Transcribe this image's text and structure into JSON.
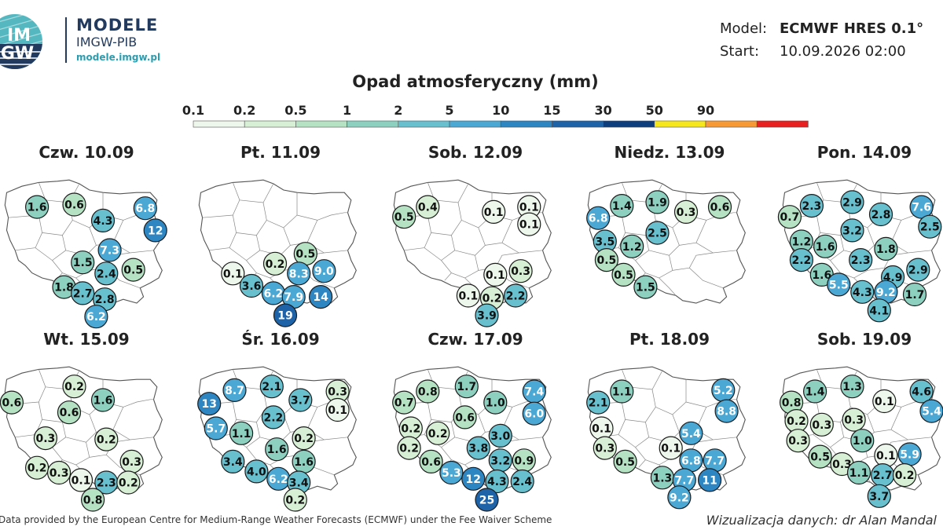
{
  "header": {
    "logo_text": "IMGW",
    "title": "MODELE",
    "subtitle": "IMGW-PIB",
    "url": "modele.imgw.pl"
  },
  "meta": {
    "model_label": "Model:",
    "model_value": "ECMWF HRES 0.1°",
    "start_label": "Start:",
    "start_value": "10.09.2026 02:00"
  },
  "scale": {
    "title": "Opad atmosferyczny (mm)",
    "ticks": [
      "0.1",
      "0.2",
      "0.5",
      "1",
      "2",
      "5",
      "10",
      "15",
      "30",
      "50",
      "90"
    ],
    "thresholds": [
      0.1,
      0.2,
      0.5,
      1,
      2,
      5,
      10,
      15,
      30,
      50,
      90
    ],
    "colors": [
      "#eef7ec",
      "#d7efd4",
      "#b6e2c4",
      "#8dd0c0",
      "#68bfce",
      "#4ba8d4",
      "#2d85c2",
      "#1e63a7",
      "#0e3d7d",
      "#f5e71b",
      "#f79a35",
      "#e8201f"
    ]
  },
  "panels": [
    {
      "title": "Czw. 10.09",
      "values": [
        [
          "1.6",
          0.21,
          0.24
        ],
        [
          "0.6",
          0.43,
          0.22
        ],
        [
          "4.3",
          0.6,
          0.35
        ],
        [
          "6.8",
          0.85,
          0.25
        ],
        [
          "12",
          0.91,
          0.43
        ],
        [
          "7.3",
          0.64,
          0.59
        ],
        [
          "1.5",
          0.48,
          0.69
        ],
        [
          "2.4",
          0.62,
          0.78
        ],
        [
          "0.5",
          0.78,
          0.75
        ],
        [
          "1.8",
          0.37,
          0.89
        ],
        [
          "2.7",
          0.48,
          0.94
        ],
        [
          "2.8",
          0.61,
          0.99
        ],
        [
          "6.2",
          0.56,
          1.13
        ]
      ]
    },
    {
      "title": "Pt. 11.09",
      "values": [
        [
          "0.5",
          0.65,
          0.62
        ],
        [
          "0.2",
          0.47,
          0.7
        ],
        [
          "0.1",
          0.22,
          0.78
        ],
        [
          "8.3",
          0.61,
          0.78
        ],
        [
          "9.0",
          0.76,
          0.76
        ],
        [
          "3.6",
          0.33,
          0.88
        ],
        [
          "6.2",
          0.46,
          0.94
        ],
        [
          "7.9",
          0.58,
          0.97
        ],
        [
          "14",
          0.74,
          0.97
        ],
        [
          "19",
          0.53,
          1.12
        ]
      ]
    },
    {
      "title": "Sob. 12.09",
      "values": [
        [
          "0.4",
          0.22,
          0.24
        ],
        [
          "0.5",
          0.08,
          0.32
        ],
        [
          "0.1",
          0.61,
          0.28
        ],
        [
          "0.1",
          0.82,
          0.24
        ],
        [
          "0.1",
          0.82,
          0.38
        ],
        [
          "0.1",
          0.62,
          0.79
        ],
        [
          "0.3",
          0.77,
          0.76
        ],
        [
          "0.1",
          0.46,
          0.96
        ],
        [
          "0.2",
          0.6,
          0.98
        ],
        [
          "2.2",
          0.74,
          0.96
        ],
        [
          "3.9",
          0.57,
          1.12
        ]
      ]
    },
    {
      "title": "Niedz. 13.09",
      "values": [
        [
          "1.4",
          0.22,
          0.23
        ],
        [
          "1.9",
          0.43,
          0.2
        ],
        [
          "0.3",
          0.6,
          0.28
        ],
        [
          "0.6",
          0.8,
          0.24
        ],
        [
          "6.8",
          0.08,
          0.33
        ],
        [
          "2.5",
          0.43,
          0.45
        ],
        [
          "3.5",
          0.12,
          0.52
        ],
        [
          "1.2",
          0.28,
          0.56
        ],
        [
          "0.5",
          0.13,
          0.67
        ],
        [
          "0.5",
          0.23,
          0.79
        ],
        [
          "1.5",
          0.36,
          0.89
        ]
      ]
    },
    {
      "title": "Pon. 14.09",
      "values": [
        [
          "2.3",
          0.19,
          0.23
        ],
        [
          "2.9",
          0.43,
          0.2
        ],
        [
          "2.8",
          0.6,
          0.3
        ],
        [
          "7.6",
          0.84,
          0.24
        ],
        [
          "0.7",
          0.06,
          0.32
        ],
        [
          "2.5",
          0.89,
          0.4
        ],
        [
          "3.2",
          0.43,
          0.43
        ],
        [
          "1.2",
          0.13,
          0.52
        ],
        [
          "1.6",
          0.27,
          0.56
        ],
        [
          "1.8",
          0.63,
          0.58
        ],
        [
          "2.2",
          0.13,
          0.67
        ],
        [
          "2.3",
          0.48,
          0.67
        ],
        [
          "2.9",
          0.82,
          0.75
        ],
        [
          "1.6",
          0.25,
          0.79
        ],
        [
          "4.9",
          0.67,
          0.81
        ],
        [
          "5.5",
          0.35,
          0.87
        ],
        [
          "4.3",
          0.49,
          0.93
        ],
        [
          "9.2",
          0.63,
          0.93
        ],
        [
          "1.7",
          0.8,
          0.95
        ],
        [
          "4.1",
          0.59,
          1.08
        ]
      ]
    },
    {
      "title": "Wt. 15.09",
      "values": [
        [
          "0.2",
          0.43,
          0.18
        ],
        [
          "0.6",
          0.06,
          0.31
        ],
        [
          "1.6",
          0.6,
          0.29
        ],
        [
          "0.6",
          0.4,
          0.39
        ],
        [
          "0.3",
          0.26,
          0.6
        ],
        [
          "0.2",
          0.62,
          0.61
        ],
        [
          "0.3",
          0.77,
          0.79
        ],
        [
          "0.2",
          0.21,
          0.84
        ],
        [
          "0.3",
          0.34,
          0.88
        ],
        [
          "0.1",
          0.47,
          0.94
        ],
        [
          "2.3",
          0.62,
          0.96
        ],
        [
          "0.2",
          0.75,
          0.96
        ],
        [
          "0.8",
          0.54,
          1.1
        ]
      ]
    },
    {
      "title": "Śr. 16.09",
      "values": [
        [
          "8.7",
          0.23,
          0.21
        ],
        [
          "2.1",
          0.45,
          0.18
        ],
        [
          "3.7",
          0.62,
          0.29
        ],
        [
          "0.3",
          0.84,
          0.22
        ],
        [
          "13",
          0.08,
          0.32
        ],
        [
          "0.1",
          0.84,
          0.37
        ],
        [
          "2.2",
          0.46,
          0.43
        ],
        [
          "5.7",
          0.12,
          0.52
        ],
        [
          "1.1",
          0.27,
          0.56
        ],
        [
          "0.2",
          0.64,
          0.6
        ],
        [
          "1.6",
          0.48,
          0.69
        ],
        [
          "1.6",
          0.64,
          0.79
        ],
        [
          "3.4",
          0.22,
          0.79
        ],
        [
          "4.0",
          0.36,
          0.87
        ],
        [
          "6.2",
          0.49,
          0.93
        ],
        [
          "3.4",
          0.61,
          0.96
        ],
        [
          "0.2",
          0.59,
          1.1
        ]
      ]
    },
    {
      "title": "Czw. 17.09",
      "values": [
        [
          "0.8",
          0.22,
          0.22
        ],
        [
          "1.7",
          0.45,
          0.18
        ],
        [
          "7.4",
          0.85,
          0.22
        ],
        [
          "0.7",
          0.08,
          0.31
        ],
        [
          "1.0",
          0.62,
          0.31
        ],
        [
          "6.0",
          0.85,
          0.4
        ],
        [
          "0.6",
          0.44,
          0.43
        ],
        [
          "0.2",
          0.12,
          0.52
        ],
        [
          "0.2",
          0.28,
          0.56
        ],
        [
          "3.0",
          0.65,
          0.58
        ],
        [
          "3.8",
          0.52,
          0.68
        ],
        [
          "0.2",
          0.11,
          0.68
        ],
        [
          "0.6",
          0.24,
          0.79
        ],
        [
          "3.2",
          0.65,
          0.78
        ],
        [
          "0.9",
          0.79,
          0.78
        ],
        [
          "5.3",
          0.36,
          0.88
        ],
        [
          "12",
          0.49,
          0.93
        ],
        [
          "4.3",
          0.63,
          0.95
        ],
        [
          "2.4",
          0.78,
          0.95
        ],
        [
          "25",
          0.57,
          1.1
        ]
      ]
    },
    {
      "title": "Pt. 18.09",
      "values": [
        [
          "1.1",
          0.22,
          0.22
        ],
        [
          "5.2",
          0.82,
          0.21
        ],
        [
          "2.1",
          0.08,
          0.31
        ],
        [
          "8.8",
          0.84,
          0.38
        ],
        [
          "0.1",
          0.1,
          0.52
        ],
        [
          "5.4",
          0.63,
          0.56
        ],
        [
          "0.3",
          0.12,
          0.68
        ],
        [
          "0.1",
          0.51,
          0.68
        ],
        [
          "0.5",
          0.24,
          0.79
        ],
        [
          "6.8",
          0.63,
          0.78
        ],
        [
          "7.7",
          0.77,
          0.78
        ],
        [
          "1.3",
          0.46,
          0.92
        ],
        [
          "7.7",
          0.59,
          0.94
        ],
        [
          "11",
          0.74,
          0.94
        ],
        [
          "9.2",
          0.56,
          1.08
        ]
      ]
    },
    {
      "title": "Sob. 19.09",
      "values": [
        [
          "1.4",
          0.21,
          0.22
        ],
        [
          "1.3",
          0.43,
          0.18
        ],
        [
          "4.6",
          0.84,
          0.22
        ],
        [
          "0.8",
          0.07,
          0.31
        ],
        [
          "0.1",
          0.62,
          0.3
        ],
        [
          "5.4",
          0.9,
          0.38
        ],
        [
          "0.2",
          0.1,
          0.46
        ],
        [
          "0.3",
          0.25,
          0.49
        ],
        [
          "0.3",
          0.44,
          0.45
        ],
        [
          "1.0",
          0.49,
          0.62
        ],
        [
          "0.3",
          0.11,
          0.62
        ],
        [
          "0.5",
          0.24,
          0.75
        ],
        [
          "0.1",
          0.63,
          0.74
        ],
        [
          "5.9",
          0.77,
          0.73
        ],
        [
          "0.3",
          0.37,
          0.81
        ],
        [
          "1.1",
          0.47,
          0.88
        ],
        [
          "2.7",
          0.61,
          0.9
        ],
        [
          "0.2",
          0.74,
          0.9
        ],
        [
          "3.7",
          0.59,
          1.07
        ]
      ]
    }
  ],
  "footer": {
    "left": "Data provided by the European Centre for Medium-Range Weather Forecasts (ECMWF) under the Fee Waiver Scheme",
    "right": "Wizualizacja danych: dr Alan Mandal"
  }
}
